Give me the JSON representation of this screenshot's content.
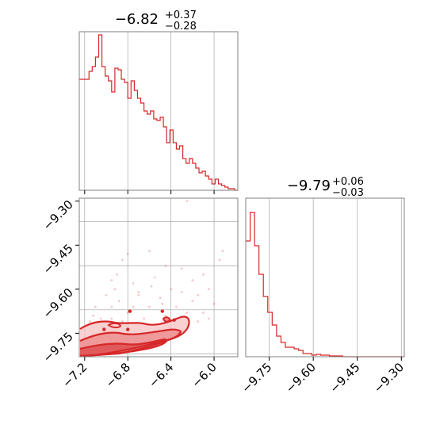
{
  "colors": {
    "accent": "#d62728",
    "fill_light": "#f7c6c6",
    "fill_mid": "#ee8f90",
    "grid": "#b0b0b0",
    "frame": "#808080"
  },
  "chart_data": [
    {
      "panel": "marginal-x",
      "type": "histogram",
      "title_value": "−6.82",
      "title_sup": "+0.37",
      "title_sub": "−0.28",
      "xlim": [
        -7.25,
        -5.78
      ],
      "ylim": [
        0,
        1.0
      ],
      "grid": true,
      "bin_edges": [
        -7.25,
        -7.22,
        -7.19,
        -7.16,
        -7.13,
        -7.1,
        -7.07,
        -7.04,
        -7.01,
        -6.98,
        -6.95,
        -6.92,
        -6.89,
        -6.86,
        -6.83,
        -6.8,
        -6.77,
        -6.74,
        -6.71,
        -6.68,
        -6.65,
        -6.62,
        -6.59,
        -6.56,
        -6.53,
        -6.5,
        -6.47,
        -6.44,
        -6.41,
        -6.38,
        -6.35,
        -6.32,
        -6.29,
        -6.26,
        -6.23,
        -6.2,
        -6.17,
        -6.14,
        -6.11,
        -6.08,
        -6.05,
        -6.02,
        -5.99,
        -5.96,
        -5.93,
        -5.9,
        -5.87,
        -5.84,
        -5.81,
        -5.78
      ],
      "counts": [
        0.7,
        0.7,
        0.7,
        0.75,
        0.78,
        0.84,
        0.98,
        0.78,
        0.72,
        0.69,
        0.62,
        0.77,
        0.76,
        0.7,
        0.68,
        0.58,
        0.69,
        0.63,
        0.58,
        0.55,
        0.5,
        0.48,
        0.5,
        0.45,
        0.44,
        0.46,
        0.4,
        0.3,
        0.38,
        0.3,
        0.26,
        0.28,
        0.2,
        0.17,
        0.2,
        0.17,
        0.14,
        0.11,
        0.12,
        0.09,
        0.07,
        0.04,
        0.07,
        0.04,
        0.03,
        0.02,
        0.01,
        0.01,
        0.0
      ]
    },
    {
      "panel": "joint",
      "type": "scatter",
      "xlim": [
        -7.25,
        -5.78
      ],
      "ylim": [
        -9.83,
        -9.29
      ],
      "grid": true,
      "xticks": [
        -7.2,
        -6.8,
        -6.4,
        -6.0
      ],
      "xtick_labels": [
        "−7.2",
        "−6.8",
        "−6.4",
        "−6.0"
      ],
      "yticks": [
        -9.3,
        -9.45,
        -9.6,
        -9.75
      ],
      "ytick_labels": [
        "−9.30",
        "−9.45",
        "−9.60",
        "−9.75"
      ],
      "points": [
        [
          -6.25,
          -9.3
        ],
        [
          -6.85,
          -9.5
        ],
        [
          -6.8,
          -9.48
        ],
        [
          -6.6,
          -9.47
        ],
        [
          -6.45,
          -9.52
        ],
        [
          -6.1,
          -9.55
        ],
        [
          -6.3,
          -9.53
        ],
        [
          -6.9,
          -9.55
        ],
        [
          -6.95,
          -9.57
        ],
        [
          -6.75,
          -9.58
        ],
        [
          -6.55,
          -9.56
        ],
        [
          -6.2,
          -9.57
        ],
        [
          -5.92,
          -9.47
        ],
        [
          -5.95,
          -9.5
        ],
        [
          -6.05,
          -9.6
        ],
        [
          -6.7,
          -9.62
        ],
        [
          -6.5,
          -9.63
        ],
        [
          -7.0,
          -9.62
        ],
        [
          -6.88,
          -9.64
        ],
        [
          -6.4,
          -9.6
        ],
        [
          -6.15,
          -9.62
        ],
        [
          -6.35,
          -9.66
        ],
        [
          -6.6,
          -9.66
        ],
        [
          -7.1,
          -9.66
        ],
        [
          -6.8,
          -9.68
        ],
        [
          -7.05,
          -9.7
        ],
        [
          -6.95,
          -9.7
        ],
        [
          -6.45,
          -9.69
        ],
        [
          -6.25,
          -9.68
        ],
        [
          -6.65,
          -9.7
        ],
        [
          -6.85,
          -9.71
        ],
        [
          -6.55,
          -9.72
        ],
        [
          -7.15,
          -9.71
        ],
        [
          -6.38,
          -9.71
        ],
        [
          -6.1,
          -9.68
        ],
        [
          -6.0,
          -9.65
        ],
        [
          -6.75,
          -9.66
        ],
        [
          -6.95,
          -9.66
        ],
        [
          -7.12,
          -9.69
        ],
        [
          -6.3,
          -9.61
        ],
        [
          -6.58,
          -9.59
        ],
        [
          -6.92,
          -9.6
        ],
        [
          -6.48,
          -9.65
        ],
        [
          -6.7,
          -9.61
        ],
        [
          -6.2,
          -9.64
        ],
        [
          -6.05,
          -9.7
        ],
        [
          -6.15,
          -9.71
        ],
        [
          -7.2,
          -9.74
        ],
        [
          -6.9,
          -9.73
        ],
        [
          -6.42,
          -9.73
        ]
      ],
      "markers": [
        [
          -6.78,
          -9.675
        ],
        [
          -6.48,
          -9.675
        ],
        [
          -6.37,
          -9.705
        ],
        [
          -6.8,
          -9.737
        ],
        [
          -7.02,
          -9.737
        ]
      ]
    },
    {
      "panel": "marginal-y",
      "type": "histogram",
      "title_value": "−9.79",
      "title_sup": "+0.06",
      "title_sub": "−0.03",
      "xlim": [
        -9.83,
        -9.29
      ],
      "ylim": [
        0,
        1.0
      ],
      "grid": true,
      "xticks": [
        -9.75,
        -9.6,
        -9.45,
        -9.3
      ],
      "xtick_labels": [
        "−9.75",
        "−9.60",
        "−9.45",
        "−9.30"
      ],
      "bin_edges": [
        -9.83,
        -9.815,
        -9.8,
        -9.785,
        -9.77,
        -9.755,
        -9.74,
        -9.725,
        -9.71,
        -9.695,
        -9.68,
        -9.665,
        -9.65,
        -9.635,
        -9.62,
        -9.605,
        -9.59,
        -9.575,
        -9.56,
        -9.545,
        -9.53,
        -9.515,
        -9.5,
        -9.485,
        -9.47,
        -9.455,
        -9.44,
        -9.425,
        -9.41,
        -9.395,
        -9.38,
        -9.365,
        -9.35,
        -9.335,
        -9.32,
        -9.305,
        -9.29
      ],
      "counts": [
        0.73,
        0.91,
        0.7,
        0.52,
        0.38,
        0.28,
        0.2,
        0.13,
        0.09,
        0.06,
        0.06,
        0.05,
        0.04,
        0.02,
        0.02,
        0.01,
        0.015,
        0.01,
        0.01,
        0.005,
        0.005,
        0.005,
        0.0,
        0.0,
        0.0,
        0.0,
        0.0,
        0.0,
        0.0,
        0.0,
        0.0,
        0.0,
        0.0,
        0.0,
        0.0,
        0.0
      ]
    }
  ]
}
